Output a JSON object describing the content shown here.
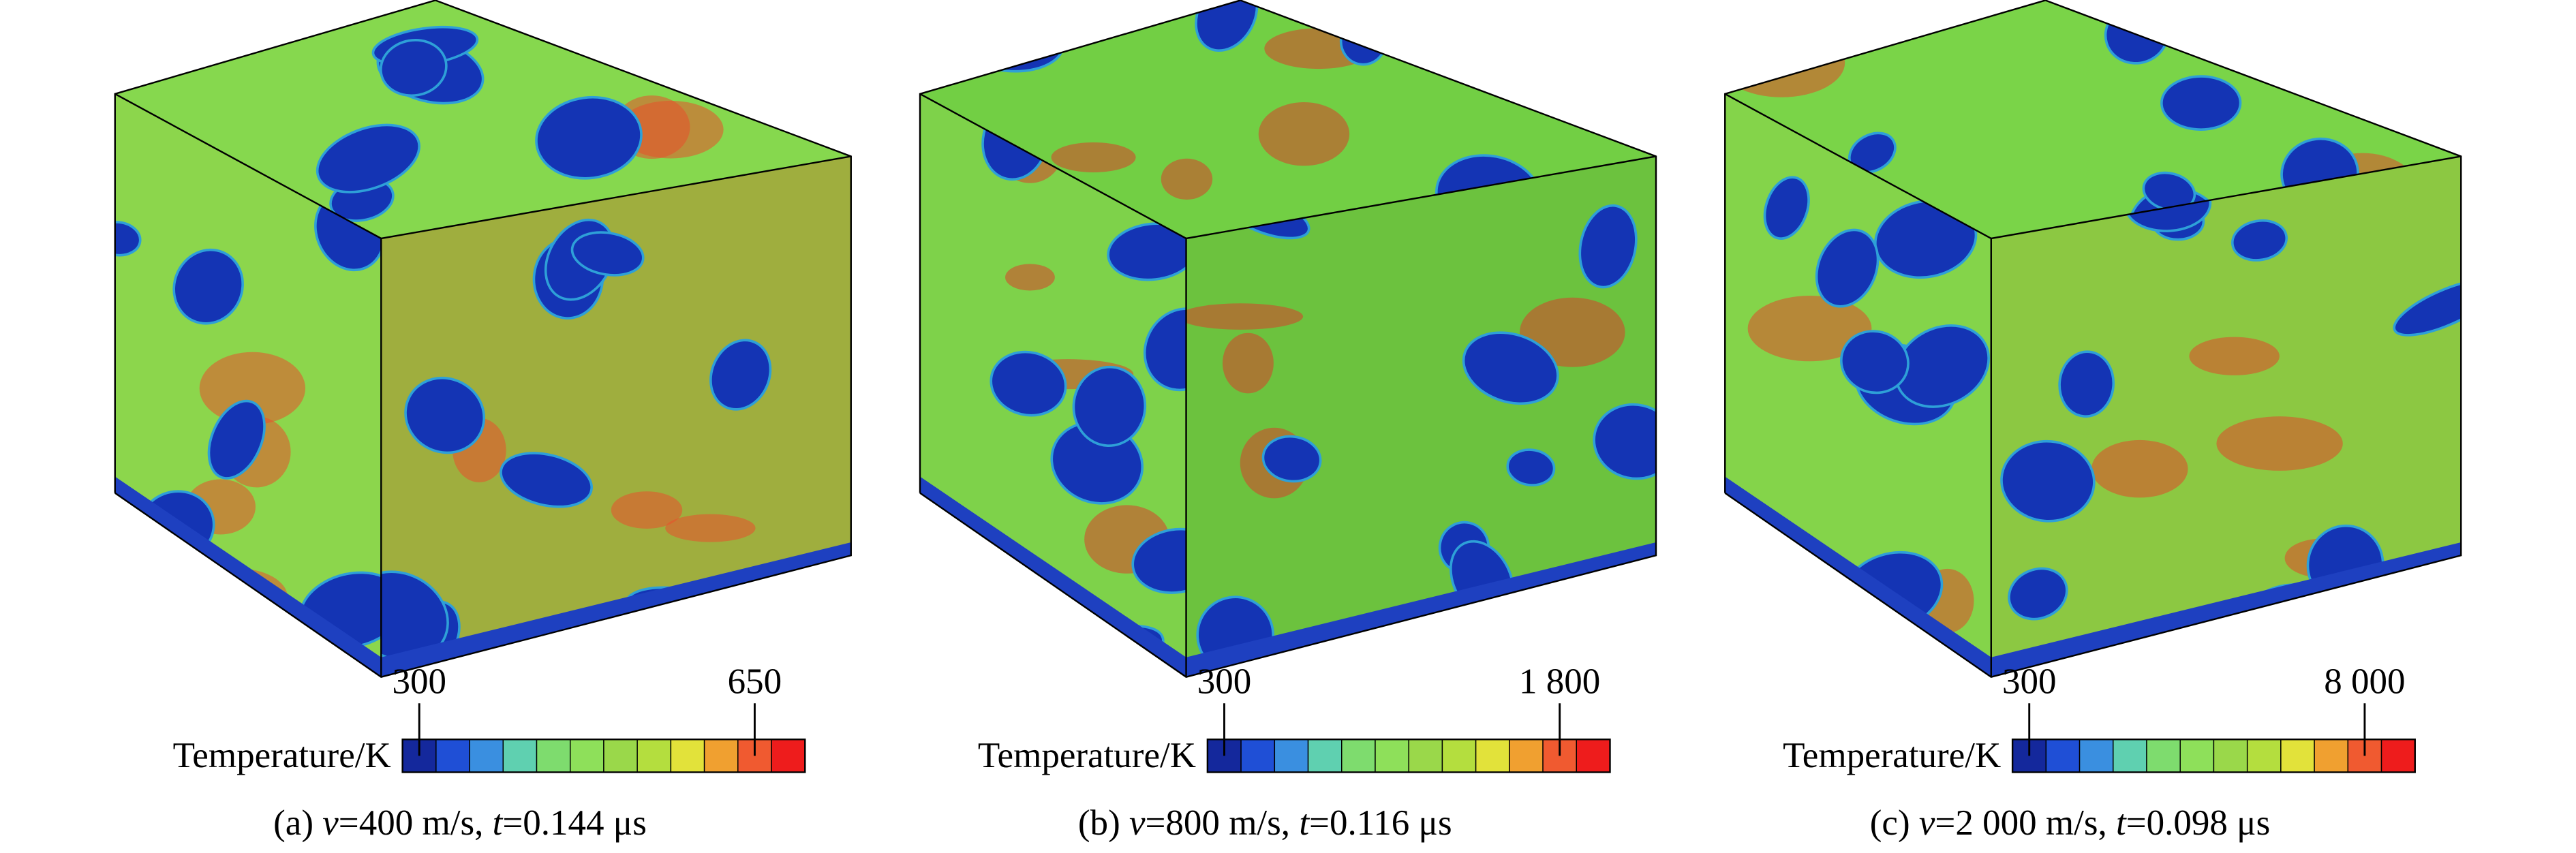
{
  "colorbar_colors": [
    "#14289c",
    "#1f4fd6",
    "#3a8fe0",
    "#5fd0b0",
    "#7edc6e",
    "#8ee05a",
    "#9ad84a",
    "#b4de3e",
    "#e2e23a",
    "#f0a030",
    "#f05a30",
    "#ee1c1c"
  ],
  "panels": [
    {
      "colorbar": {
        "label": "Temperature/K",
        "min_label": "300",
        "max_label": "650"
      },
      "caption": [
        {
          "text": "(a) "
        },
        {
          "text": "v",
          "italic": true
        },
        {
          "text": "=400 m/s, "
        },
        {
          "text": "t",
          "italic": true
        },
        {
          "text": "=0.144 μs"
        }
      ]
    },
    {
      "colorbar": {
        "label": "Temperature/K",
        "min_label": "300",
        "max_label": "1 800"
      },
      "caption": [
        {
          "text": "(b) "
        },
        {
          "text": "v",
          "italic": true
        },
        {
          "text": "=800 m/s, "
        },
        {
          "text": "t",
          "italic": true
        },
        {
          "text": "=0.116 μs"
        }
      ]
    },
    {
      "colorbar": {
        "label": "Temperature/K",
        "min_label": "300",
        "max_label": "8 000"
      },
      "caption": [
        {
          "text": "(c) "
        },
        {
          "text": "v",
          "italic": true
        },
        {
          "text": "=2 000 m/s, "
        },
        {
          "text": "t",
          "italic": true
        },
        {
          "text": "=0.098 μs"
        }
      ]
    }
  ]
}
